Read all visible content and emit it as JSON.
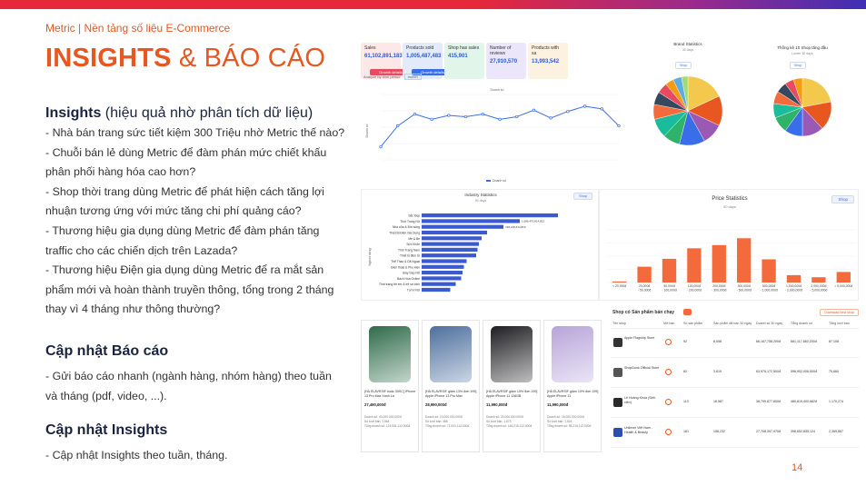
{
  "header": {
    "brand": "Metric | Nền tảng số liệu E-Commerce",
    "title_bold": "INSIGHTS",
    "title_rest": " & BÁO CÁO",
    "page_number": "14"
  },
  "left": {
    "insights_title": "Insights",
    "insights_sub": " (hiệu quả nhờ phân tích dữ liệu)",
    "insights_lines": [
      "- Nhà bán trang sức tiết kiệm 300 Triệu nhờ Metric thế nào?",
      "- Chuỗi bán lẻ dùng Metric để đàm phán mức chiết khấu",
      "phân phối hàng hóa cao hơn?",
      "- Shop thời trang dùng Metric để phát hiện cách tăng lợi",
      "nhuận tương ứng với mức tăng chi phí quảng cáo?",
      "- Thương hiệu gia dụng dùng Metric để đàm phán tăng",
      "traffic cho các chiến dịch trên Lazada?",
      "- Thương hiệu Điện gia dụng dùng Metric để ra mắt sản",
      "phẩm mới và hoàn thành truyền thông, tổng trong 2 tháng",
      "thay vì 4 tháng như thông thường?"
    ],
    "report_title": "Cập nhật Báo cáo",
    "report_lines": [
      "-  Gửi báo cáo nhanh (ngành hàng, nhóm hàng) theo tuần",
      "    và tháng (pdf, video, ...)."
    ],
    "update_title": "Cập nhật Insights",
    "update_lines": [
      "-  Cập nhật Insights theo tuần, tháng."
    ]
  },
  "kpis": [
    {
      "label": "Sales",
      "value": "61,102,891,183,983đ",
      "button": "Growth details",
      "bg": "#fde7e7",
      "btn": "#e84a5f"
    },
    {
      "label": "Products sold",
      "value": "1,005,487,483",
      "button": "Growth details",
      "bg": "#e3ebfb",
      "btn": "#3a6ee8"
    },
    {
      "label": "Shop has sales",
      "value": "415,901",
      "button": "",
      "bg": "#e2f5ea",
      "btn": "#2fb36b"
    },
    {
      "label": "Number of reviews",
      "value": "27,910,570",
      "button": "",
      "bg": "#ece6fb",
      "btn": "#7a55d8"
    },
    {
      "label": "Products with sa",
      "value": "13,993,542",
      "button": "",
      "bg": "#fdf1df",
      "btn": "#e8a23a"
    }
  ],
  "line_panel": {
    "filter_label": "Analyze by time period",
    "filter_value": "month",
    "series_name": "Doanh số",
    "ylabel": "Doanh số"
  },
  "brand_panel": {
    "title": "Brand Statistics",
    "subtitle": "30 days",
    "button": "Shop"
  },
  "shop_panel": {
    "title": "Thống kê 10 Shop tăng đầu",
    "subtitle": "Lorem 30 days",
    "button": "Shop"
  },
  "industry_panel": {
    "title": "Industry Statistics",
    "subtitle": "90 days",
    "button": "Shop",
    "ylabel": "Ngành hàng",
    "categories": [
      "Sắc Đẹp",
      "Thời Trang Nữ",
      "Nhà cửa & Đời sống",
      "Thiết Bị Điện Gia Dụng",
      "Mẹ & Bé",
      "Sức Khỏe",
      "Thời Trang Nam",
      "Thiết bị điện tử",
      "Thể Thao & Dã Ngoại",
      "Điện thoại & Phụ kiện",
      "Giày Dép Nữ",
      "Bách Hóa Online",
      "Thời trang trẻ em & trẻ sơ sinh",
      "Túi Ví Nữ"
    ],
    "values": [
      100,
      72,
      60,
      48,
      44,
      42,
      41,
      40,
      33,
      31,
      30,
      29,
      25,
      21
    ],
    "value_labels": [
      "",
      "1,086,470,814,822",
      "748,219,614,810",
      "",
      "",
      "",
      "",
      "",
      "",
      "",
      "",
      "",
      "",
      ""
    ]
  },
  "price_panel": {
    "title": "Price Statistics",
    "subtitle": "90 days",
    "button": "Shop",
    "categories": [
      "< 20,000đ",
      "20,000đ - 50,000đ",
      "50,000đ - 100,000đ",
      "100,000đ - 200,000đ",
      "200,000đ - 300,000đ",
      "300,000đ - 500,000đ",
      "500,000đ - 1,000,000đ",
      "1,000,000đ - 2,000,000đ",
      "2,000,000đ - 5,000,000đ",
      "> 5,000,000đ"
    ],
    "values": [
      2,
      30,
      45,
      65,
      71,
      84,
      44,
      14,
      10,
      20
    ]
  },
  "products": [
    {
      "img": "#2f6b4a",
      "title": "[HÀ ELAVRSIF hoặc 30SC] iPhone 13 Pro Max Xanh Lá",
      "price": "27,490,000đ",
      "rows": [
        "Doanh số: 43,000,000,000đ",
        "Số lượt bán: 1,564",
        "Tổng doanh số: 124,531,112,000đ"
      ]
    },
    {
      "img": "#4d6f9e",
      "title": "[HÀ ELAVRSIF giảm 13% đơn 199] Apple iPhone 13 Pro Max",
      "price": "28,990,000đ",
      "rows": [
        "Doanh số: 13,000,000,000đ",
        "Số lượt bán: 486",
        "Tổng doanh số: 71,531,112,000đ"
      ]
    },
    {
      "img": "#1e1e22",
      "title": "[HÀ ELAVRSIF giảm 10% đơn 199] Apple iPhone 11 128GB",
      "price": "11,990,000đ",
      "rows": [
        "Doanh số: 20,000,000,000đ",
        "Số lượt bán: 1,673",
        "Tổng doanh số: 146,215,112,000đ"
      ]
    },
    {
      "img": "#b7a4d9",
      "title": "[HÀ ELAVRSIF giảm 10% đơn 199] Apple iPhone 11",
      "price": "11,990,000đ",
      "rows": [
        "Doanh số: 18,000,000,000đ",
        "Số lượt bán: 1,524",
        "Tổng doanh số: 98,215,112,000đ"
      ]
    }
  ],
  "shop_table": {
    "title": "Shop có Sản phẩm bán chạy",
    "download": "Download best shop",
    "columns": [
      "Tên shop",
      "Mở bán",
      "Số sản phẩm",
      "Sản phẩm đã bán 30 ngày",
      "Doanh số 30 ngày",
      "Tổng doanh số",
      "Tổng lượt bán"
    ],
    "rows": [
      {
        "name": "Apple Flagship Store",
        "logo": "#333333",
        "cells": [
          "92",
          "8,058",
          "66,167,758,200đ",
          "661,117,660,200đ",
          "87,108"
        ]
      },
      {
        "name": "ShopDunk Official Store",
        "logo": "#555555",
        "cells": [
          "82",
          "3,619",
          "63,975,172,500đ",
          "596,902,006,500đ",
          "75,660"
        ]
      },
      {
        "name": "Lê Hoàng Khoa (Sinh viên)",
        "logo": "#2a2a2a",
        "cells": [
          "110",
          "16,987",
          "38,799,877,800đ",
          "480,819,400,682đ",
          "1,170,274"
        ]
      },
      {
        "name": "Unilever Việt Nam - Health & Beauty",
        "logo": "#2a4fb0",
        "cells": [
          "181",
          "158,232",
          "27,708,397,970đ",
          "396,652,855,124",
          "2,359,867"
        ]
      }
    ]
  }
}
